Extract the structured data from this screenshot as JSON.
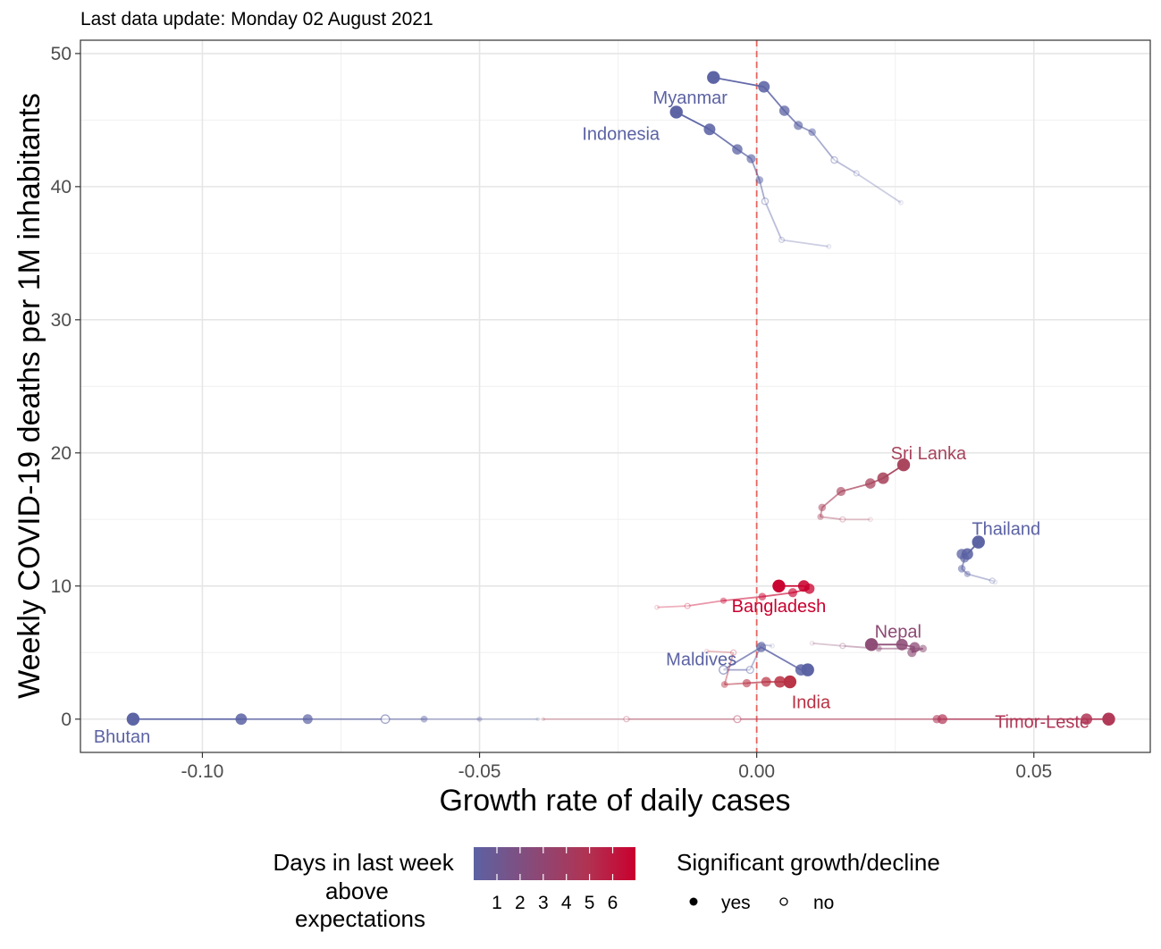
{
  "subtitle": "Last data update: Monday 02 August 2021",
  "chart_data": {
    "type": "scatter",
    "xlabel": "Growth rate of daily cases",
    "ylabel": "Weekly COVID-19 deaths per 1M inhabitants",
    "xlim": [
      -0.122,
      0.071
    ],
    "ylim": [
      -2.5,
      51
    ],
    "x_ticks": [
      -0.1,
      -0.05,
      0.0,
      0.05
    ],
    "x_tick_labels": [
      "-0.10",
      "-0.05",
      "0.00",
      "0.05"
    ],
    "y_ticks": [
      0,
      10,
      20,
      30,
      40,
      50
    ],
    "y_tick_labels": [
      "0",
      "10",
      "20",
      "30",
      "40",
      "50"
    ],
    "grid": true,
    "reference_line": {
      "x": 0,
      "color": "#e8655f",
      "style": "dashed"
    },
    "legend": {
      "position": "bottom",
      "color_title": "Days in last week above expectations",
      "color_scale": {
        "low": "#5b62a3",
        "high": "#c9002e"
      },
      "color_tick_labels": [
        "1",
        "2",
        "3",
        "4",
        "5",
        "6"
      ],
      "shape_title": "Significant growth/decline",
      "shape_labels": [
        "yes",
        "no"
      ]
    },
    "series": [
      {
        "name": "Myanmar",
        "color": "#5b62a3",
        "label_at": [
          -0.012,
          46.7
        ],
        "points": [
          [
            0.026,
            38.8,
            0
          ],
          [
            0.018,
            41.0,
            0
          ],
          [
            0.014,
            42.0,
            0
          ],
          [
            0.01,
            44.1,
            1
          ],
          [
            0.0075,
            44.6,
            1
          ],
          [
            0.005,
            45.7,
            1
          ],
          [
            0.0013,
            47.5,
            1
          ],
          [
            -0.0078,
            48.2,
            1
          ]
        ]
      },
      {
        "name": "Indonesia",
        "color": "#5b62a3",
        "label_at": [
          -0.0245,
          44.0
        ],
        "points": [
          [
            0.013,
            35.5,
            0
          ],
          [
            0.0045,
            36.0,
            0
          ],
          [
            0.0015,
            38.9,
            0
          ],
          [
            0.0005,
            40.5,
            1
          ],
          [
            -0.001,
            42.1,
            1
          ],
          [
            -0.0035,
            42.8,
            1
          ],
          [
            -0.0085,
            44.3,
            1
          ],
          [
            -0.0145,
            45.6,
            1
          ]
        ]
      },
      {
        "name": "Sri Lanka",
        "color": "#a8435c",
        "label_at": [
          0.031,
          20.0
        ],
        "points": [
          [
            0.0205,
            15.0,
            0
          ],
          [
            0.0155,
            15.0,
            0
          ],
          [
            0.0115,
            15.2,
            1
          ],
          [
            0.0118,
            15.9,
            1
          ],
          [
            0.0152,
            17.1,
            1
          ],
          [
            0.0205,
            17.7,
            1
          ],
          [
            0.0228,
            18.1,
            1
          ],
          [
            0.0265,
            19.1,
            1
          ]
        ]
      },
      {
        "name": "Thailand",
        "color": "#5b62a3",
        "label_at": [
          0.045,
          14.3
        ],
        "points": [
          [
            0.043,
            10.3,
            0
          ],
          [
            0.0425,
            10.4,
            0
          ],
          [
            0.038,
            10.9,
            1
          ],
          [
            0.037,
            11.3,
            1
          ],
          [
            0.0375,
            12.1,
            1
          ],
          [
            0.037,
            12.4,
            1
          ],
          [
            0.038,
            12.4,
            1
          ],
          [
            0.04,
            13.3,
            1
          ]
        ]
      },
      {
        "name": "Bangladesh",
        "color": "#c9002e",
        "label_at": [
          0.004,
          8.5
        ],
        "points": [
          [
            -0.018,
            8.4,
            0
          ],
          [
            -0.0125,
            8.5,
            0
          ],
          [
            -0.006,
            8.9,
            1
          ],
          [
            0.001,
            9.2,
            1
          ],
          [
            0.0065,
            9.5,
            1
          ],
          [
            0.0095,
            9.8,
            1
          ],
          [
            0.0085,
            10.0,
            1
          ],
          [
            0.004,
            10.0,
            1
          ]
        ]
      },
      {
        "name": "Nepal",
        "color": "#8c4a74",
        "label_at": [
          0.0255,
          6.6
        ],
        "points": [
          [
            0.01,
            5.7,
            0
          ],
          [
            0.0155,
            5.5,
            0
          ],
          [
            0.022,
            5.3,
            1
          ],
          [
            0.03,
            5.3,
            1
          ],
          [
            0.028,
            5.0,
            1
          ],
          [
            0.0285,
            5.4,
            1
          ],
          [
            0.0262,
            5.6,
            1
          ],
          [
            0.0207,
            5.6,
            1
          ]
        ]
      },
      {
        "name": "Maldives",
        "color": "#5b62a3",
        "label_at": [
          -0.01,
          4.5
        ],
        "points": [
          [
            0.0028,
            5.5,
            0
          ],
          [
            0.0009,
            5.6,
            0
          ],
          [
            -0.0012,
            3.7,
            0
          ],
          [
            -0.006,
            3.7,
            0
          ],
          [
            0.0008,
            5.4,
            1
          ],
          [
            0.008,
            3.7,
            1
          ],
          [
            0.0092,
            3.7,
            1
          ]
        ]
      },
      {
        "name": "India",
        "color": "#b83143",
        "label_at": [
          0.0098,
          1.3
        ],
        "points": [
          [
            -0.009,
            5.1,
            0
          ],
          [
            -0.0042,
            5.0,
            0
          ],
          [
            -0.0058,
            2.6,
            1
          ],
          [
            -0.0018,
            2.7,
            1
          ],
          [
            0.0017,
            2.8,
            1
          ],
          [
            0.0042,
            2.8,
            1
          ],
          [
            0.006,
            2.8,
            1
          ]
        ]
      },
      {
        "name": "Bhutan",
        "color": "#5b62a3",
        "label_at": [
          -0.1145,
          -1.3
        ],
        "points": [
          [
            -0.0395,
            0,
            1
          ],
          [
            -0.05,
            0,
            1
          ],
          [
            -0.06,
            0,
            1
          ],
          [
            -0.067,
            0,
            0
          ],
          [
            -0.081,
            0,
            1
          ],
          [
            -0.093,
            0,
            1
          ],
          [
            -0.1125,
            0,
            1
          ]
        ]
      },
      {
        "name": "Timor-Leste",
        "color": "#b03656",
        "label_at": [
          0.0515,
          -0.2
        ],
        "points": [
          [
            -0.0385,
            0,
            1
          ],
          [
            -0.0235,
            0,
            0
          ],
          [
            -0.0035,
            0,
            0
          ],
          [
            0.0325,
            0,
            1
          ],
          [
            0.0335,
            0,
            1
          ],
          [
            0.0595,
            0,
            1
          ],
          [
            0.0635,
            0,
            1
          ]
        ]
      }
    ]
  }
}
